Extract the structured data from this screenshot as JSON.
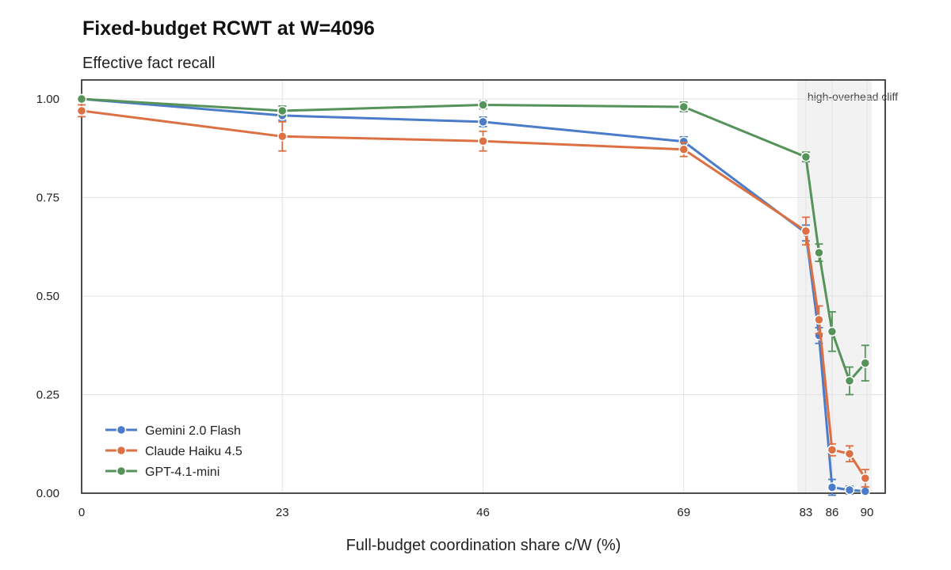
{
  "chart_data": {
    "type": "line",
    "title": "Fixed-budget RCWT at W=4096",
    "ylabel": "Effective fact recall",
    "xlabel": "Full-budget coordination share c/W (%)",
    "x_ticks": [
      0,
      23,
      46,
      69,
      83,
      86,
      90
    ],
    "y_ticks": [
      "0.00",
      "0.25",
      "0.50",
      "0.75",
      "1.00"
    ],
    "xlim": [
      0,
      92
    ],
    "ylim": [
      0,
      1.05
    ],
    "grid": true,
    "legend_position": "bottom-left",
    "shaded_region": {
      "x_start": 82,
      "x_end": 90,
      "label": "high-overhead cliff"
    },
    "x": [
      0,
      23,
      46,
      69,
      83,
      84.5,
      86,
      88,
      89.8
    ],
    "series": [
      {
        "name": "Gemini 2.0 Flash",
        "color": "#4a7cc9",
        "values": [
          1.0,
          0.958,
          0.942,
          0.892,
          0.66,
          0.4,
          0.015,
          0.008,
          0.005
        ],
        "error": [
          0.005,
          0.012,
          0.012,
          0.012,
          0.02,
          0.02,
          0.02,
          0.01,
          0.006
        ]
      },
      {
        "name": "Claude Haiku 4.5",
        "color": "#dc7042",
        "values": [
          0.97,
          0.905,
          0.893,
          0.872,
          0.665,
          0.44,
          0.11,
          0.1,
          0.038
        ],
        "error": [
          0.015,
          0.037,
          0.025,
          0.018,
          0.035,
          0.035,
          0.015,
          0.02,
          0.022
        ]
      },
      {
        "name": "GPT-4.1-mini",
        "color": "#55935a",
        "values": [
          1.0,
          0.97,
          0.985,
          0.98,
          0.853,
          0.61,
          0.41,
          0.285,
          0.33
        ],
        "error": [
          0.005,
          0.012,
          0.01,
          0.012,
          0.012,
          0.022,
          0.05,
          0.035,
          0.045
        ]
      }
    ]
  }
}
